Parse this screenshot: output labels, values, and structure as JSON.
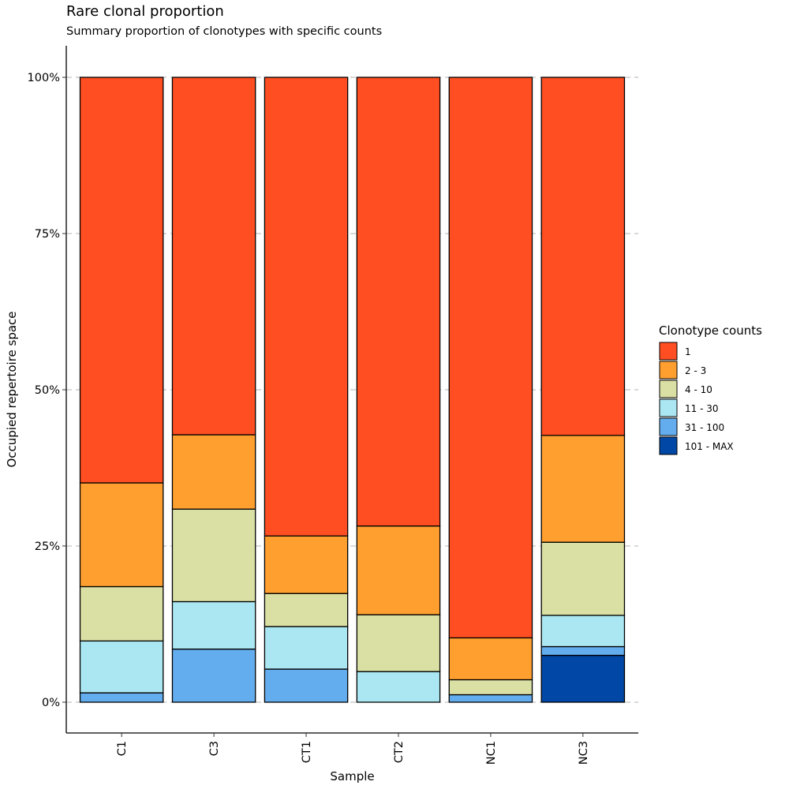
{
  "chart_data": {
    "type": "bar",
    "stacked": true,
    "title": "Rare clonal proportion",
    "subtitle": "Summary proportion of clonotypes with specific counts",
    "xlabel": "Sample",
    "ylabel": "Occupied repertoire space",
    "categories": [
      "C1",
      "C3",
      "CT1",
      "CT2",
      "NC1",
      "NC3"
    ],
    "ylim": [
      0,
      1
    ],
    "yticks": [
      0,
      0.25,
      0.5,
      0.75,
      1.0
    ],
    "ytick_labels": [
      "0%",
      "25%",
      "50%",
      "75%",
      "100%"
    ],
    "grid": "horizontal dashed",
    "legend_title": "Clonotype counts",
    "legend_position": "right",
    "series": [
      {
        "name": "101 - MAX",
        "color": "#0047A6",
        "values": [
          0.0,
          0.0,
          0.0,
          0.0,
          0.0,
          0.075
        ]
      },
      {
        "name": "31 - 100",
        "color": "#63ACED",
        "values": [
          0.015,
          0.085,
          0.053,
          0.0,
          0.012,
          0.014
        ]
      },
      {
        "name": "11 - 30",
        "color": "#ABE7F2",
        "values": [
          0.083,
          0.076,
          0.068,
          0.049,
          0.0,
          0.05
        ]
      },
      {
        "name": "4 - 10",
        "color": "#DADFA4",
        "values": [
          0.087,
          0.148,
          0.053,
          0.091,
          0.024,
          0.117
        ]
      },
      {
        "name": "2 - 3",
        "color": "#FF9F30",
        "values": [
          0.166,
          0.119,
          0.092,
          0.142,
          0.067,
          0.171
        ]
      },
      {
        "name": "1",
        "color": "#FF4E21",
        "values": [
          0.649,
          0.572,
          0.734,
          0.718,
          0.897,
          0.573
        ]
      }
    ]
  }
}
